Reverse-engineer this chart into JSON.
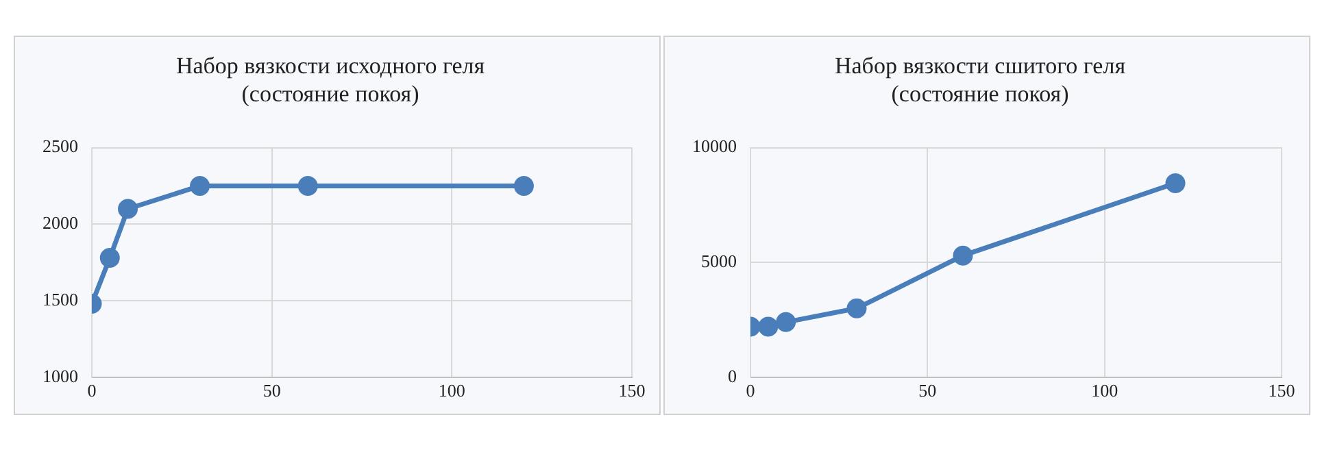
{
  "chart_data": [
    {
      "type": "line",
      "title": [
        "Набор вязкости исходного геля",
        "(состояние покоя)"
      ],
      "x": [
        0,
        5,
        10,
        30,
        60,
        120
      ],
      "series": [
        {
          "color": "#4a7ebb",
          "values": [
            1480,
            1780,
            2100,
            2250,
            2250,
            2250
          ]
        }
      ],
      "xlim": [
        0,
        150
      ],
      "xticks": [
        0,
        50,
        100,
        150
      ],
      "ylim": [
        1000,
        2500
      ],
      "yticks": [
        1000,
        1500,
        2000,
        2500
      ],
      "grid": true,
      "legend": false,
      "marker": "circle",
      "line_style": "solid"
    },
    {
      "type": "line",
      "title": [
        "Набор вязкости сшитого геля",
        "(состояние покоя)"
      ],
      "x": [
        0,
        5,
        10,
        30,
        60,
        120
      ],
      "series": [
        {
          "color": "#4a7ebb",
          "values": [
            2200,
            2200,
            2400,
            3000,
            5300,
            8450
          ]
        }
      ],
      "xlim": [
        0,
        150
      ],
      "xticks": [
        0,
        50,
        100,
        150
      ],
      "ylim": [
        0,
        10000
      ],
      "yticks": [
        0,
        5000,
        10000
      ],
      "grid": true,
      "legend": false,
      "marker": "circle",
      "line_style": "solid"
    }
  ]
}
